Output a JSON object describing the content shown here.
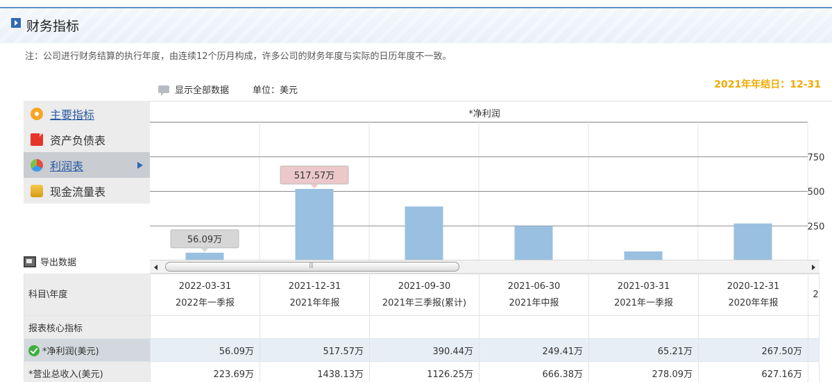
{
  "header": {
    "title": "财务指标"
  },
  "note": "注：公司进行财务结算的执行年度，由连续12个历月构成，许多公司的财务年度与实际的日历年度不一致。",
  "fiscal_year_end": "2021年年结日：12-31",
  "toolbar": {
    "show_all": "显示全部数据",
    "unit": "单位：美元"
  },
  "menu": [
    {
      "label": "主要指标",
      "icon": "flower-icon",
      "active": false
    },
    {
      "label": "资产负债表",
      "icon": "document-icon",
      "active": false
    },
    {
      "label": "利润表",
      "icon": "pie-icon",
      "active": true
    },
    {
      "label": "现金流量表",
      "icon": "coins-icon",
      "active": false
    }
  ],
  "export_label": "导出数据",
  "chart_data": {
    "type": "bar",
    "title": "*净利润",
    "categories": [
      "2022-03-31",
      "2021-12-31",
      "2021-09-30",
      "2021-06-30",
      "2021-03-31",
      "2020-12-31"
    ],
    "values": [
      56.09,
      517.57,
      390.44,
      249.41,
      65.21,
      267.5
    ],
    "unit": "万",
    "yticks": [
      250,
      500,
      750
    ],
    "ylim": [
      0,
      1000
    ],
    "ytick_position": "right",
    "bar_color": "#99c0e0",
    "tooltips": [
      {
        "index": 0,
        "text": "56.09万",
        "color": "#d6d6d6"
      },
      {
        "index": 1,
        "text": "517.57万",
        "color": "#ecc8c8"
      }
    ]
  },
  "table": {
    "corner": "科目\\年度",
    "periods": [
      {
        "date": "2022-03-31",
        "name": "2022年一季报"
      },
      {
        "date": "2021-12-31",
        "name": "2021年年报"
      },
      {
        "date": "2021-09-30",
        "name": "2021年三季报(累计)"
      },
      {
        "date": "2021-06-30",
        "name": "2021年中报"
      },
      {
        "date": "2021-03-31",
        "name": "2021年一季报"
      },
      {
        "date": "2020-12-31",
        "name": "2020年年报"
      }
    ],
    "extra_col": "2",
    "section": "报表核心指标",
    "rows": [
      {
        "label": "*净利润(美元)",
        "selected": true,
        "values": [
          "56.09万",
          "517.57万",
          "390.44万",
          "249.41万",
          "65.21万",
          "267.50万"
        ]
      },
      {
        "label": "*营业总收入(美元)",
        "selected": false,
        "values": [
          "223.69万",
          "1438.13万",
          "1126.25万",
          "666.38万",
          "278.09万",
          "627.16万"
        ]
      }
    ]
  }
}
